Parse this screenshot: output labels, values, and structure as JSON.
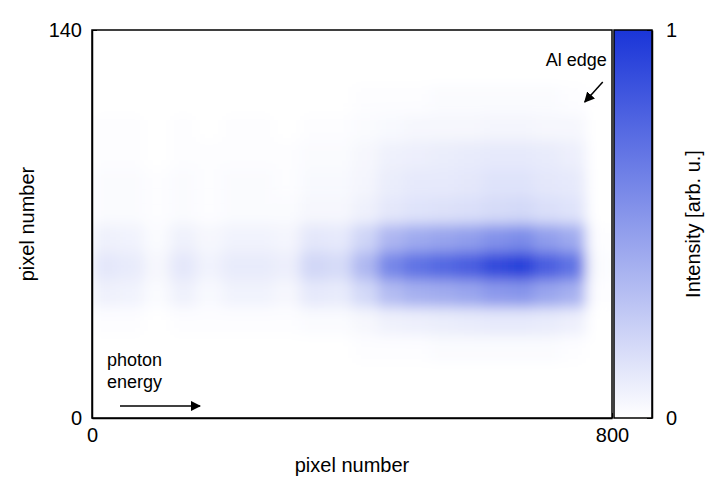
{
  "chart_data": {
    "type": "heatmap",
    "xlabel": "pixel number",
    "ylabel": "pixel number",
    "x_bins": [
      0,
      40,
      80,
      120,
      160,
      200,
      240,
      280,
      320,
      360,
      400,
      440,
      480,
      520,
      560,
      600,
      640,
      680,
      720,
      760,
      800
    ],
    "y_bins": [
      0,
      10,
      20,
      30,
      40,
      50,
      60,
      70,
      80,
      90,
      100,
      110,
      120,
      130,
      140
    ],
    "values": [
      [
        0,
        0,
        0,
        0,
        0,
        0,
        0,
        0,
        0,
        0,
        0,
        0,
        0,
        0,
        0,
        0,
        0,
        0,
        0,
        0
      ],
      [
        0,
        0,
        0,
        0,
        0,
        0,
        0,
        0,
        0,
        0,
        0,
        0,
        0,
        0,
        0,
        0,
        0,
        0,
        0,
        0
      ],
      [
        0,
        0,
        0,
        0,
        0,
        0,
        0,
        0,
        0,
        0,
        0.01,
        0.01,
        0.01,
        0.02,
        0.02,
        0.02,
        0.02,
        0.02,
        0.01,
        0
      ],
      [
        0.01,
        0.01,
        0,
        0.01,
        0.01,
        0.01,
        0.01,
        0.01,
        0.02,
        0.02,
        0.04,
        0.07,
        0.08,
        0.09,
        0.1,
        0.11,
        0.11,
        0.1,
        0.08,
        0
      ],
      [
        0.07,
        0.06,
        0.02,
        0.07,
        0.03,
        0.06,
        0.06,
        0.04,
        0.11,
        0.1,
        0.19,
        0.33,
        0.39,
        0.41,
        0.44,
        0.5,
        0.52,
        0.44,
        0.39,
        0.01
      ],
      [
        0.12,
        0.1,
        0.04,
        0.12,
        0.06,
        0.1,
        0.1,
        0.08,
        0.2,
        0.18,
        0.35,
        0.6,
        0.7,
        0.75,
        0.8,
        0.9,
        0.95,
        0.8,
        0.7,
        0.02
      ],
      [
        0.07,
        0.06,
        0.02,
        0.07,
        0.04,
        0.06,
        0.06,
        0.05,
        0.12,
        0.11,
        0.21,
        0.36,
        0.42,
        0.45,
        0.48,
        0.54,
        0.57,
        0.48,
        0.42,
        0.01
      ],
      [
        0.02,
        0.02,
        0.01,
        0.02,
        0.01,
        0.02,
        0.02,
        0.02,
        0.04,
        0.04,
        0.07,
        0.12,
        0.14,
        0.15,
        0.16,
        0.18,
        0.19,
        0.16,
        0.14,
        0
      ],
      [
        0.02,
        0.02,
        0.01,
        0.02,
        0.01,
        0.02,
        0.02,
        0.01,
        0.03,
        0.03,
        0.05,
        0.09,
        0.11,
        0.11,
        0.12,
        0.14,
        0.14,
        0.12,
        0.11,
        0
      ],
      [
        0.01,
        0.01,
        0,
        0.01,
        0.01,
        0.01,
        0.01,
        0.01,
        0.02,
        0.02,
        0.04,
        0.07,
        0.08,
        0.09,
        0.1,
        0.11,
        0.11,
        0.1,
        0.08,
        0
      ],
      [
        0.01,
        0.01,
        0,
        0.01,
        0,
        0.01,
        0.01,
        0,
        0.01,
        0.01,
        0.02,
        0.03,
        0.04,
        0.04,
        0.04,
        0.05,
        0.05,
        0.04,
        0.04,
        0
      ],
      [
        0,
        0,
        0,
        0,
        0,
        0,
        0,
        0,
        0,
        0,
        0.01,
        0.01,
        0.01,
        0.02,
        0.02,
        0.02,
        0.02,
        0.02,
        0.01,
        0
      ],
      [
        0,
        0,
        0,
        0,
        0,
        0,
        0,
        0,
        0,
        0,
        0,
        0,
        0,
        0,
        0,
        0,
        0,
        0,
        0,
        0
      ],
      [
        0,
        0,
        0,
        0,
        0,
        0,
        0,
        0,
        0,
        0,
        0,
        0,
        0,
        0,
        0,
        0,
        0,
        0,
        0,
        0
      ]
    ],
    "xlim": [
      0,
      800
    ],
    "ylim": [
      0,
      140
    ],
    "xticks": [
      0,
      800
    ],
    "yticks": [
      0,
      140
    ],
    "colorbar": {
      "label": "Intensity [arb. u.]",
      "range": [
        0,
        1
      ],
      "ticks": [
        0,
        1
      ],
      "colors": [
        "#ffffff",
        "#1a35d8"
      ]
    },
    "annotations": [
      {
        "text": "Al edge",
        "x": 755
      },
      {
        "text": "photon energy"
      }
    ]
  }
}
